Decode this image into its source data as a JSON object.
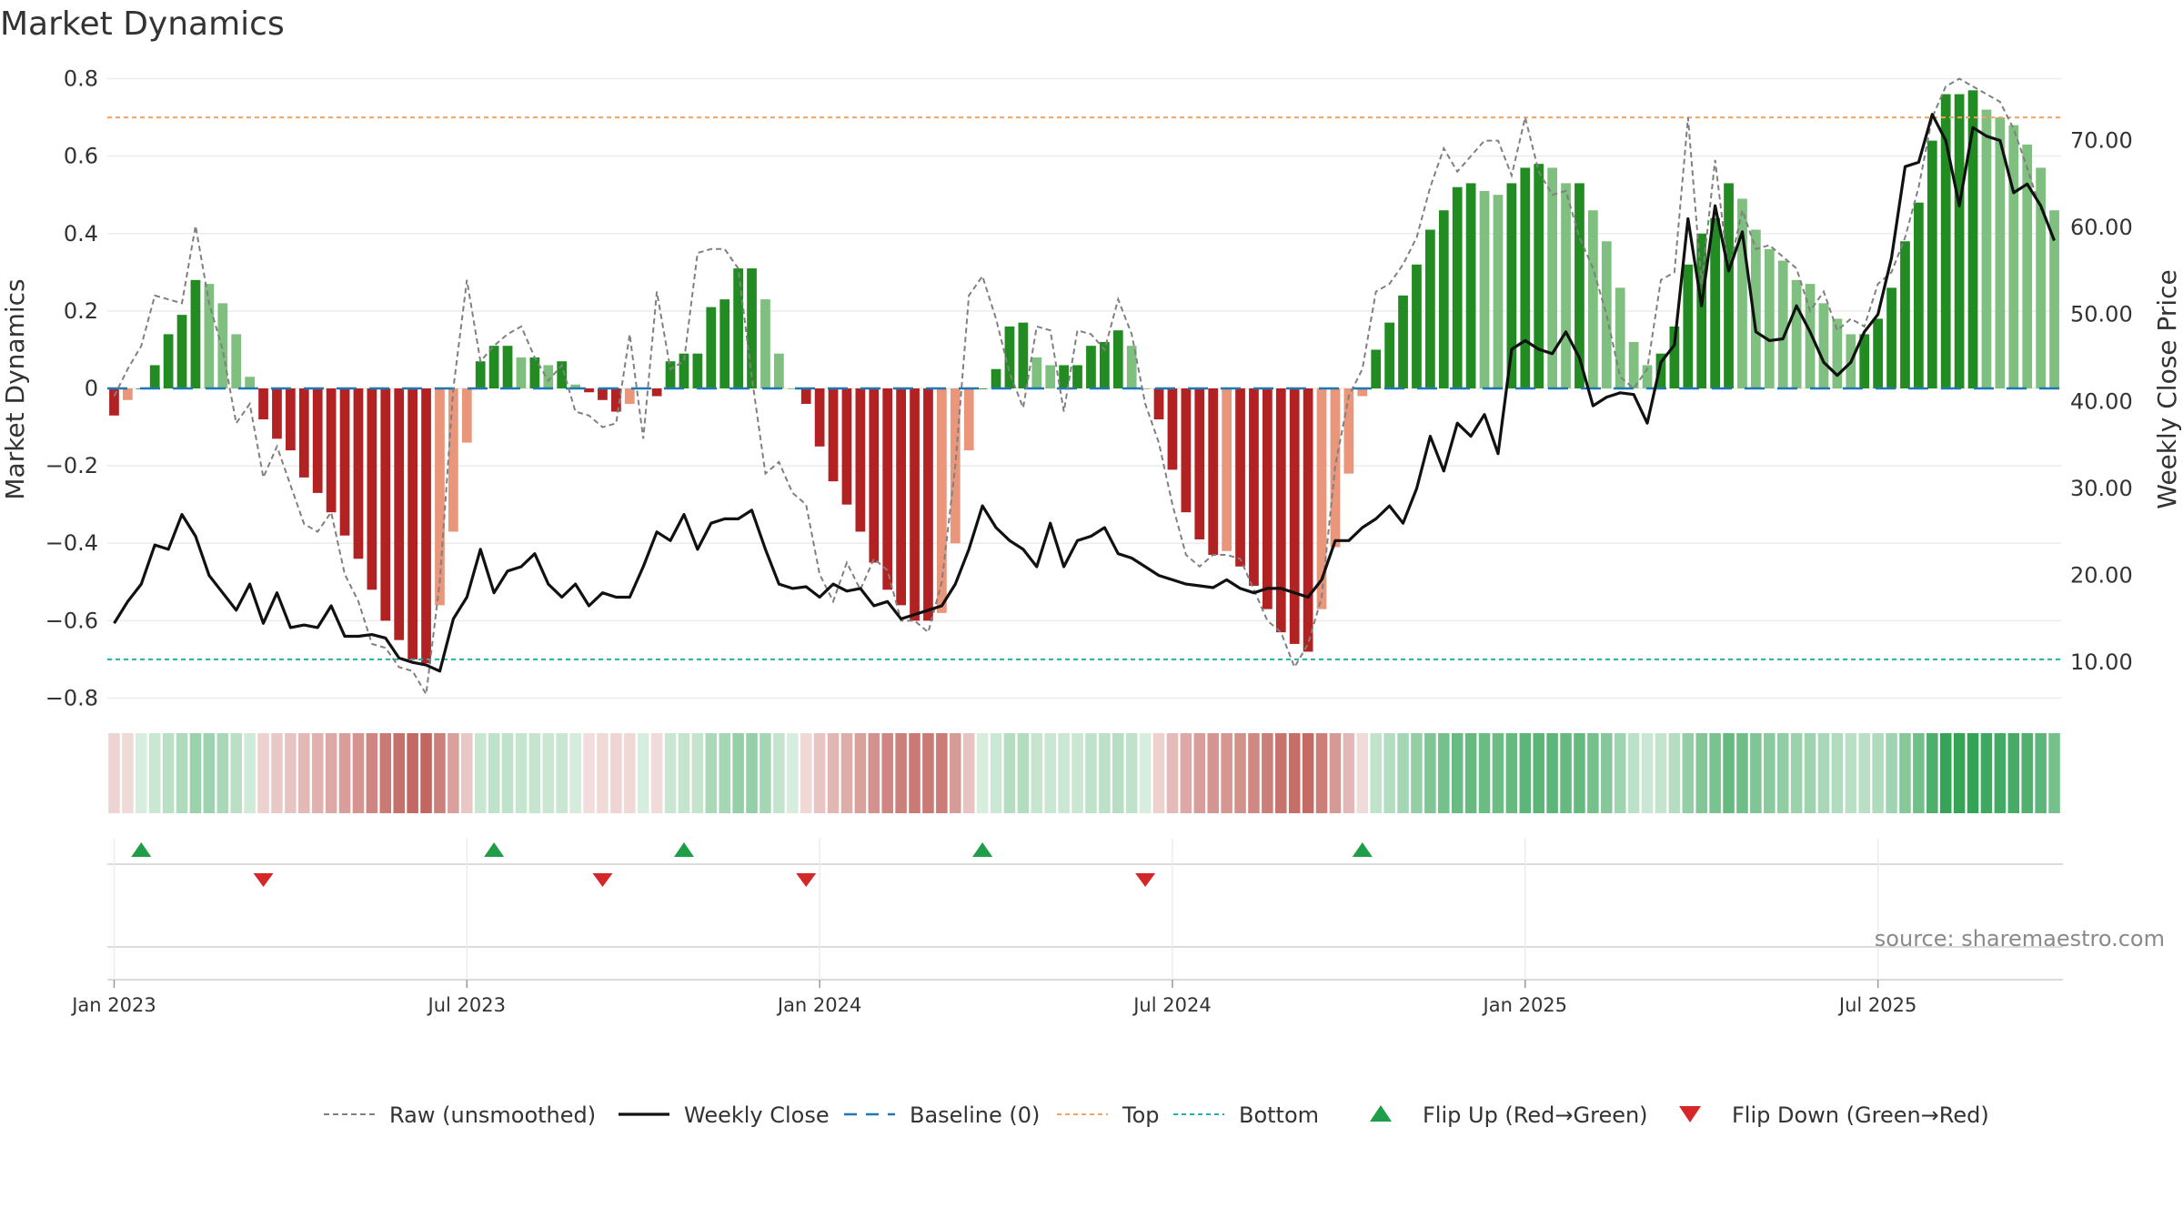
{
  "chart_data": {
    "type": "bar",
    "title": "Market Dynamics",
    "ylabel": "Market Dynamics",
    "y2label": "Weekly Close Price",
    "ylim": [
      -0.82,
      0.82
    ],
    "y2lim": [
      5.0,
      78.0
    ],
    "yticks": [
      0.8,
      0.6,
      0.4,
      0.2,
      0,
      -0.2,
      -0.4,
      -0.6,
      -0.8
    ],
    "yticklabels": [
      "0.8",
      "0.6",
      "0.4",
      "0.2",
      "0",
      "−0.2",
      "−0.4",
      "−0.6",
      "−0.8"
    ],
    "y2ticks": [
      70,
      60,
      50,
      40,
      30,
      20,
      10
    ],
    "y2ticklabels": [
      "70.00",
      "60.00",
      "50.00",
      "40.00",
      "30.00",
      "20.00",
      "10.00"
    ],
    "xticks": [
      0,
      26,
      52,
      78,
      104,
      130
    ],
    "xticklabels": [
      "Jan 2023",
      "Jul 2023",
      "Jan 2024",
      "Jul 2024",
      "Jan 2025",
      "Jul 2025"
    ],
    "top_threshold": 0.7,
    "bottom_threshold": -0.7,
    "baseline": 0,
    "colors": {
      "green_strong": "#228B22",
      "green_weak": "#7fbf7f",
      "red_strong": "#b22222",
      "red_weak": "#e9967a",
      "close_line": "#111111",
      "raw_line": "#808080",
      "baseline": "#1f77b4",
      "top": "#f4a460",
      "bottom": "#20b2aa",
      "flip_up": "#1e9e48",
      "flip_down": "#d62728"
    },
    "bars": [
      -0.07,
      -0.03,
      0.0,
      0.06,
      0.14,
      0.19,
      0.28,
      0.27,
      0.22,
      0.14,
      0.03,
      -0.08,
      -0.13,
      -0.16,
      -0.23,
      -0.27,
      -0.32,
      -0.38,
      -0.44,
      -0.52,
      -0.6,
      -0.65,
      -0.7,
      -0.71,
      -0.56,
      -0.37,
      -0.14,
      0.07,
      0.11,
      0.11,
      0.08,
      0.08,
      0.06,
      0.07,
      0.01,
      -0.01,
      -0.03,
      -0.06,
      -0.04,
      0.0,
      -0.02,
      0.07,
      0.09,
      0.09,
      0.21,
      0.23,
      0.31,
      0.31,
      0.23,
      0.09,
      0.0,
      -0.04,
      -0.15,
      -0.24,
      -0.3,
      -0.37,
      -0.45,
      -0.52,
      -0.56,
      -0.6,
      -0.6,
      -0.58,
      -0.4,
      -0.16,
      0.0,
      0.05,
      0.16,
      0.17,
      0.08,
      0.06,
      0.06,
      0.06,
      0.11,
      0.12,
      0.15,
      0.11,
      0.0,
      -0.08,
      -0.21,
      -0.32,
      -0.39,
      -0.43,
      -0.42,
      -0.46,
      -0.51,
      -0.57,
      -0.63,
      -0.66,
      -0.68,
      -0.57,
      -0.41,
      -0.22,
      -0.02,
      0.1,
      0.17,
      0.24,
      0.32,
      0.41,
      0.46,
      0.52,
      0.53,
      0.51,
      0.5,
      0.53,
      0.57,
      0.58,
      0.57,
      0.53,
      0.53,
      0.46,
      0.38,
      0.26,
      0.12,
      0.06,
      0.09,
      0.16,
      0.32,
      0.4,
      0.44,
      0.53,
      0.49,
      0.41,
      0.36,
      0.33,
      0.28,
      0.27,
      0.22,
      0.18,
      0.14,
      0.14,
      0.18,
      0.26,
      0.38,
      0.48,
      0.64,
      0.76,
      0.76,
      0.77,
      0.72,
      0.7,
      0.68,
      0.63,
      0.57,
      0.46
    ],
    "raw": [
      -0.02,
      0.05,
      0.11,
      0.24,
      0.23,
      0.22,
      0.42,
      0.22,
      0.1,
      -0.09,
      -0.04,
      -0.23,
      -0.15,
      -0.25,
      -0.35,
      -0.37,
      -0.32,
      -0.48,
      -0.55,
      -0.66,
      -0.67,
      -0.72,
      -0.73,
      -0.79,
      -0.5,
      0.0,
      0.28,
      0.07,
      0.11,
      0.14,
      0.16,
      0.08,
      0.02,
      0.06,
      -0.06,
      -0.07,
      -0.1,
      -0.09,
      0.14,
      -0.13,
      0.25,
      0.05,
      0.07,
      0.35,
      0.36,
      0.36,
      0.31,
      0.03,
      -0.22,
      -0.19,
      -0.27,
      -0.3,
      -0.48,
      -0.55,
      -0.45,
      -0.52,
      -0.44,
      -0.47,
      -0.6,
      -0.6,
      -0.63,
      -0.5,
      -0.2,
      0.24,
      0.29,
      0.18,
      0.04,
      -0.05,
      0.16,
      0.15,
      -0.06,
      0.15,
      0.14,
      0.1,
      0.23,
      0.14,
      -0.04,
      -0.14,
      -0.3,
      -0.43,
      -0.46,
      -0.43,
      -0.43,
      -0.44,
      -0.52,
      -0.6,
      -0.63,
      -0.72,
      -0.66,
      -0.54,
      -0.2,
      -0.02,
      0.05,
      0.25,
      0.27,
      0.32,
      0.39,
      0.52,
      0.62,
      0.56,
      0.6,
      0.64,
      0.64,
      0.55,
      0.7,
      0.56,
      0.5,
      0.51,
      0.39,
      0.31,
      0.19,
      0.03,
      0.0,
      0.05,
      0.28,
      0.3,
      0.7,
      0.27,
      0.59,
      0.3,
      0.46,
      0.36,
      0.37,
      0.34,
      0.31,
      0.2,
      0.25,
      0.15,
      0.18,
      0.16,
      0.27,
      0.3,
      0.39,
      0.52,
      0.7,
      0.78,
      0.8,
      0.78,
      0.76,
      0.74,
      0.67,
      0.57,
      0.46
    ],
    "close": [
      14.5,
      17.0,
      19.0,
      23.5,
      23.0,
      27.0,
      24.5,
      20.0,
      18.0,
      16.0,
      19.0,
      14.5,
      18.0,
      14.0,
      14.3,
      14.0,
      16.5,
      13.0,
      13.0,
      13.2,
      12.8,
      10.5,
      10.0,
      9.7,
      9.0,
      15.0,
      17.5,
      23.0,
      18.0,
      20.5,
      21.0,
      22.5,
      19.0,
      17.5,
      19.0,
      16.5,
      18.0,
      17.5,
      17.5,
      21.0,
      25.0,
      24.0,
      27.0,
      23.0,
      26.0,
      26.5,
      26.5,
      27.5,
      23.0,
      19.0,
      18.5,
      18.7,
      17.5,
      19.0,
      18.2,
      18.5,
      16.5,
      17.0,
      15.0,
      15.5,
      16.0,
      16.5,
      19.0,
      23.0,
      28.0,
      25.5,
      24.0,
      23.0,
      21.0,
      26.0,
      21.0,
      24.0,
      24.5,
      25.5,
      22.5,
      22.0,
      21.0,
      20.0,
      19.5,
      19.0,
      18.8,
      18.6,
      19.5,
      18.5,
      18.0,
      18.5,
      18.5,
      18.0,
      17.5,
      19.5,
      24.0,
      24.0,
      25.5,
      26.5,
      28.0,
      26.0,
      30.0,
      36.0,
      32.0,
      37.5,
      36.0,
      38.5,
      34.0,
      46.0,
      47.0,
      46.0,
      45.5,
      48.0,
      45.0,
      39.5,
      40.5,
      41.0,
      40.8,
      37.5,
      44.5,
      46.5,
      61.0,
      51.0,
      62.5,
      55.0,
      59.5,
      48.0,
      47.0,
      47.2,
      51.0,
      48.0,
      44.5,
      43.0,
      44.5,
      48.0,
      50.0,
      56.5,
      67.0,
      67.5,
      73.0,
      70.0,
      62.5,
      71.5,
      70.5,
      70.0,
      64.0,
      65.0,
      62.5,
      58.5
    ],
    "flip_up": [
      2,
      28,
      42,
      64,
      92
    ],
    "flip_down": [
      11,
      36,
      51,
      76
    ],
    "legend": [
      {
        "label": "Raw (unsmoothed)",
        "style": "raw"
      },
      {
        "label": "Weekly Close",
        "style": "close"
      },
      {
        "label": "Baseline (0)",
        "style": "baseline"
      },
      {
        "label": "Top",
        "style": "top"
      },
      {
        "label": "Bottom",
        "style": "bottom"
      },
      {
        "label": "Flip Up (Red→Green)",
        "style": "up"
      },
      {
        "label": "Flip Down (Green→Red)",
        "style": "down"
      }
    ],
    "source": "source: sharemaestro.com"
  }
}
